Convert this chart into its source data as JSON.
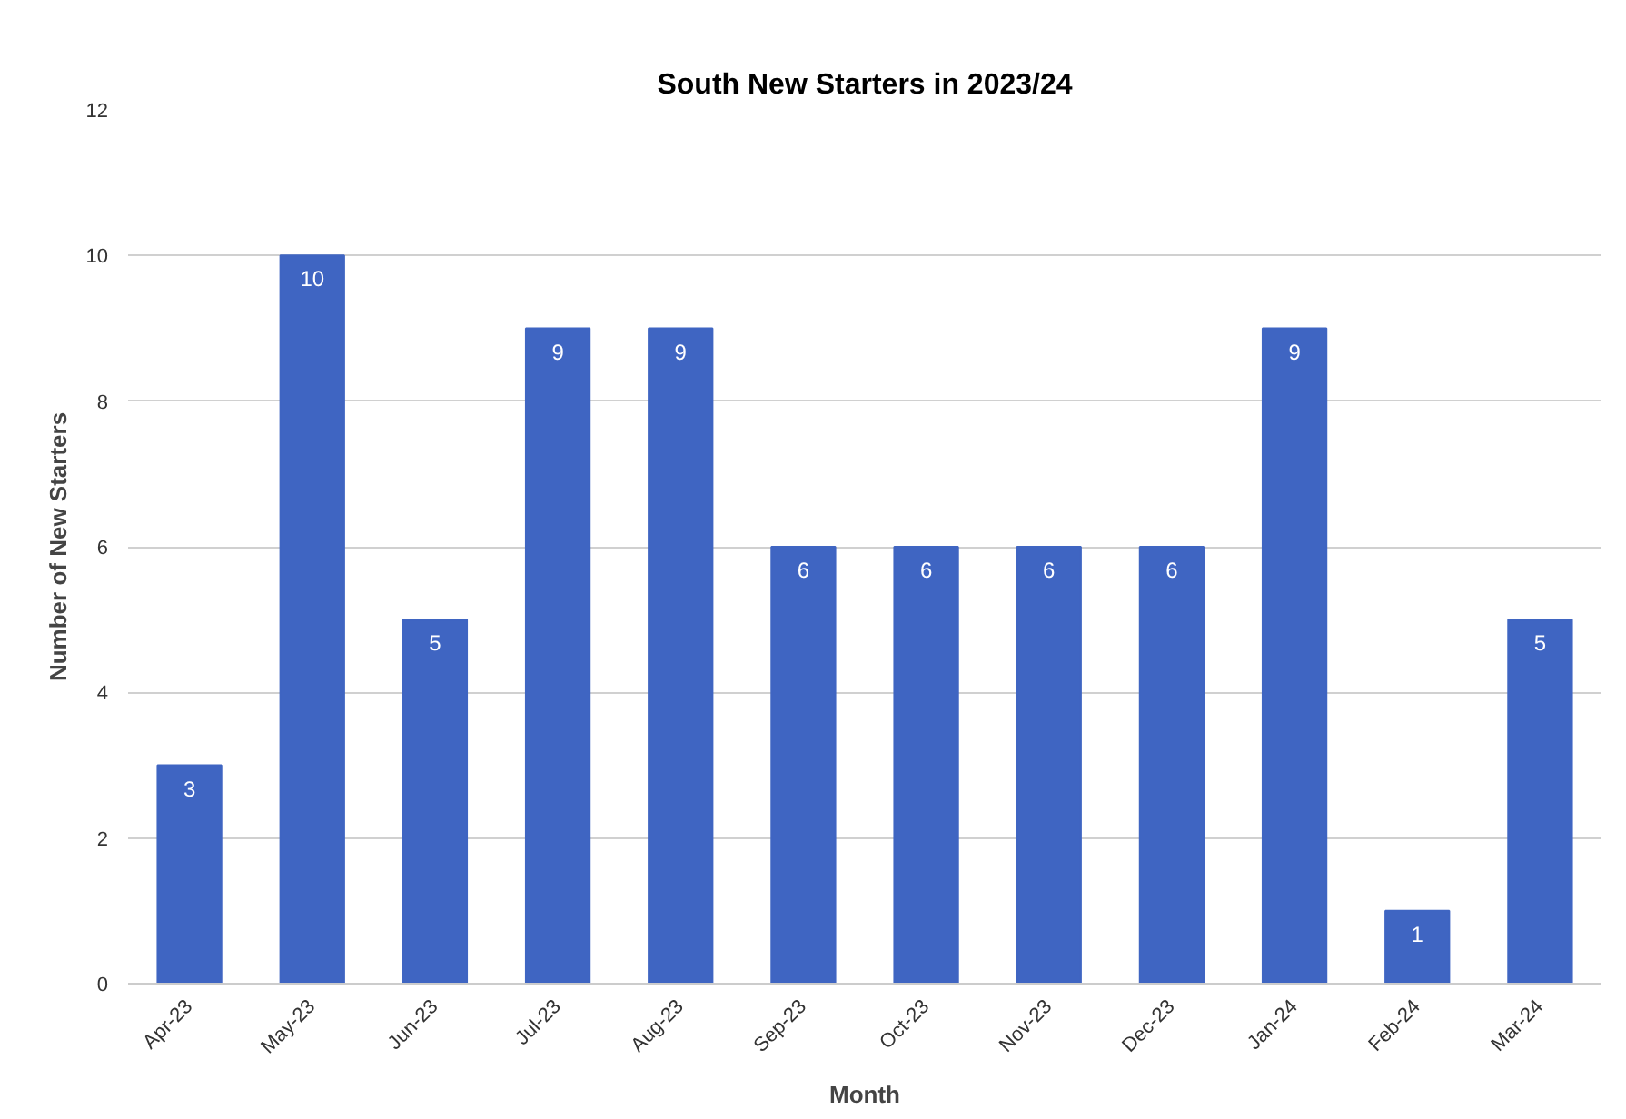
{
  "chart_data": {
    "type": "bar",
    "title": "South New Starters in 2023/24",
    "xlabel": "Month",
    "ylabel": "Number of New Starters",
    "categories": [
      "Apr-23",
      "May-23",
      "Jun-23",
      "Jul-23",
      "Aug-23",
      "Sep-23",
      "Oct-23",
      "Nov-23",
      "Dec-23",
      "Jan-24",
      "Feb-24",
      "Mar-24"
    ],
    "values": [
      3,
      10,
      5,
      9,
      9,
      6,
      6,
      6,
      6,
      9,
      1,
      5
    ],
    "color": "#3f65c2",
    "ylim": [
      0,
      12
    ],
    "yticks": [
      0,
      2,
      4,
      6,
      8,
      10,
      12
    ],
    "grid": "y",
    "data_labels": true
  }
}
